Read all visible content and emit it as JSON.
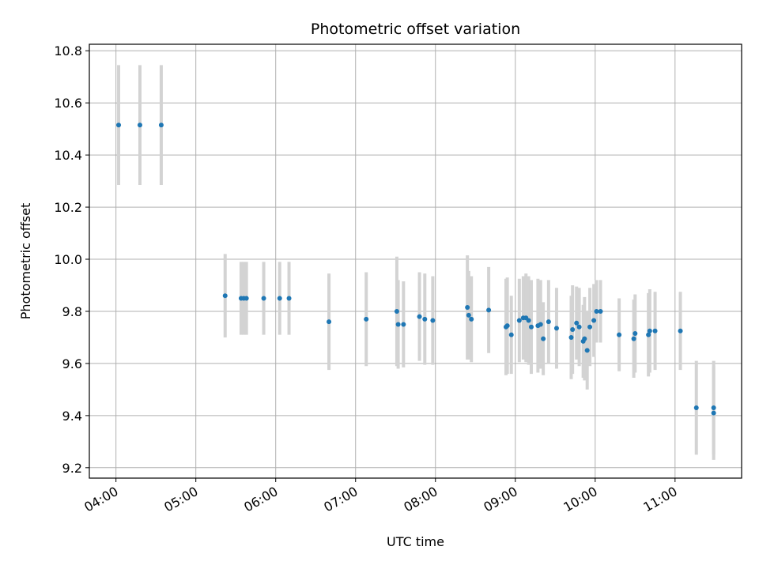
{
  "chart_data": {
    "type": "scatter",
    "title": "Photometric offset variation",
    "xlabel": "UTC time",
    "ylabel": "Photometric offset",
    "xlim": [
      "03:40",
      "11:50"
    ],
    "ylim": [
      9.16,
      10.825
    ],
    "grid": true,
    "x_ticks": [
      "04:00",
      "05:00",
      "06:00",
      "07:00",
      "08:00",
      "09:00",
      "10:00",
      "11:00"
    ],
    "y_ticks": [
      "9.2",
      "9.4",
      "9.6",
      "9.8",
      "10.0",
      "10.2",
      "10.4",
      "10.6",
      "10.8"
    ],
    "colors": {
      "points": "#1f77b4",
      "error_bars": "#d3d3d3",
      "grid": "#b0b0b0"
    },
    "series": [
      {
        "x": [
          "04:02",
          "04:18",
          "04:34",
          "05:22",
          "05:34",
          "05:36",
          "05:38",
          "05:51",
          "06:03",
          "06:10",
          "06:40",
          "07:08",
          "07:31",
          "07:32",
          "07:36",
          "07:48",
          "07:52",
          "07:58",
          "08:24",
          "08:25",
          "08:27",
          "08:40",
          "08:53",
          "08:54",
          "08:57",
          "09:03",
          "09:06",
          "09:08",
          "09:10",
          "09:12",
          "09:17",
          "09:19",
          "09:21",
          "09:25",
          "09:31",
          "09:42",
          "09:43",
          "09:46",
          "09:48",
          "09:51",
          "09:52",
          "09:54",
          "09:56",
          "09:59",
          "10:01",
          "10:04",
          "10:18",
          "10:29",
          "10:30",
          "10:40",
          "10:41",
          "10:45",
          "11:04",
          "11:16",
          "11:29",
          "11:29"
        ],
        "y": [
          10.515,
          10.515,
          10.515,
          9.86,
          9.85,
          9.85,
          9.85,
          9.85,
          9.85,
          9.85,
          9.76,
          9.77,
          9.8,
          9.75,
          9.75,
          9.78,
          9.77,
          9.765,
          9.815,
          9.785,
          9.77,
          9.805,
          9.74,
          9.745,
          9.71,
          9.765,
          9.775,
          9.775,
          9.765,
          9.74,
          9.745,
          9.75,
          9.695,
          9.76,
          9.735,
          9.7,
          9.73,
          9.755,
          9.74,
          9.685,
          9.695,
          9.65,
          9.74,
          9.765,
          9.8,
          9.8,
          9.71,
          9.695,
          9.715,
          9.71,
          9.725,
          9.725,
          9.725,
          9.43,
          9.41,
          9.43
        ],
        "yerr": [
          0.23,
          0.23,
          0.23,
          0.16,
          0.14,
          0.14,
          0.14,
          0.14,
          0.14,
          0.14,
          0.185,
          0.18,
          0.21,
          0.17,
          0.165,
          0.17,
          0.175,
          0.17,
          0.2,
          0.17,
          0.165,
          0.165,
          0.185,
          0.185,
          0.15,
          0.16,
          0.16,
          0.17,
          0.17,
          0.18,
          0.18,
          0.17,
          0.14,
          0.16,
          0.155,
          0.16,
          0.17,
          0.14,
          0.15,
          0.14,
          0.16,
          0.15,
          0.15,
          0.14,
          0.12,
          0.12,
          0.14,
          0.15,
          0.15,
          0.16,
          0.16,
          0.15,
          0.15,
          0.18,
          0.18,
          0.18
        ]
      }
    ]
  }
}
